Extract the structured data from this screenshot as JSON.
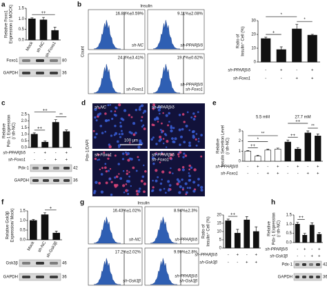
{
  "chart_data": [
    {
      "type": "bar",
      "panel": "a",
      "ylabel": [
        "Relative Foxo1",
        "Expression (/ MOCK)"
      ],
      "categories": [
        "Mock",
        "sh-NC",
        "sh-Foxo1"
      ],
      "values": [
        1.0,
        0.95,
        0.45
      ],
      "errors": [
        0.05,
        0.12,
        0.15
      ],
      "colors": [
        "#111111",
        "#111111",
        "#111111"
      ],
      "ylim": [
        0,
        1.5
      ],
      "yticks": [
        {
          "value": 0,
          "label": "0.0"
        },
        0.5,
        {
          "value": 1,
          "label": "1.0"
        },
        1.5
      ],
      "annotations": [
        "++"
      ]
    },
    {
      "type": "bar",
      "ylabel": [
        "Ratio of",
        "Insulin⁺ Cell (%)"
      ],
      "values": [
        17,
        9,
        24,
        19.5
      ],
      "errors": [
        1,
        2,
        3.4,
        0.6
      ],
      "colors": [
        "#111111",
        "#111111",
        "#111111",
        "#111111"
      ],
      "ylim": [
        0,
        30
      ],
      "yticks": [
        0,
        10,
        20,
        30
      ],
      "conditions": [
        {
          "name": "sh-PPARβ/δ",
          "signs": [
            "-",
            "+",
            "-",
            "+"
          ]
        },
        {
          "name": "sh-Foxo1",
          "signs": [
            "-",
            "-",
            "+",
            "+"
          ]
        }
      ],
      "annotations": [
        "+",
        "*",
        "*"
      ]
    },
    {
      "type": "bar",
      "panel": "c",
      "ylabel": [
        "Relative",
        "Pdx-1 Expression",
        "(/ sh-NC)"
      ],
      "values": [
        1.0,
        0.4,
        1.9,
        1.2
      ],
      "errors": [
        0.1,
        0.08,
        0.2,
        0.12
      ],
      "colors": [
        "#111111",
        "#111111",
        "#111111",
        "#111111"
      ],
      "ylim": [
        0,
        2.5
      ],
      "yticks": [
        {
          "value": 0,
          "label": "0.0"
        },
        0.5,
        {
          "value": 1,
          "label": "1.0"
        },
        1.5,
        {
          "value": 2,
          "label": "2.0"
        },
        2.5
      ],
      "conditions": [
        {
          "name": "sh-PPARβ/δ",
          "signs": [
            "-",
            "+",
            "-",
            "+"
          ]
        },
        {
          "name": "sh-Foxo1",
          "signs": [
            "-",
            "-",
            "+",
            "+"
          ]
        }
      ],
      "annotations": [
        "++",
        "++",
        "**"
      ]
    },
    {
      "type": "bar",
      "panel": "e",
      "ylabel": [
        "Relative",
        "Insulin Secretion Level",
        "(/ sh-NC)"
      ],
      "groups": [
        "5.5 mM",
        "27.7 mM"
      ],
      "values": [
        1.0,
        0.5,
        1.1,
        1.2,
        1.9,
        1.2,
        2.8,
        2.5
      ],
      "errors": [
        0.05,
        0.08,
        0.1,
        0.1,
        0.2,
        0.15,
        0.2,
        0.2
      ],
      "colors": [
        "#ffffff",
        "#ffffff",
        "#ffffff",
        "#ffffff",
        "#111111",
        "#111111",
        "#111111",
        "#111111"
      ],
      "ylim": [
        0,
        3
      ],
      "yticks": [
        0,
        1,
        2,
        3
      ],
      "conditions": [
        {
          "name": "sh-PPARβ/δ",
          "signs": [
            "-",
            "+",
            "-",
            "+",
            "-",
            "+",
            "-",
            "+"
          ]
        },
        {
          "name": "sh-Foxo1",
          "signs": [
            "-",
            "-",
            "+",
            "+",
            "-",
            "-",
            "+",
            "+"
          ]
        }
      ],
      "annotations": [
        "++",
        "*",
        "**",
        "++",
        "++",
        "**"
      ]
    },
    {
      "type": "bar",
      "panel": "f",
      "ylabel": [
        "Relative Gsk3β",
        "Expression/ Mock)"
      ],
      "categories": [
        "Mock",
        "sh-NC",
        "sh-Gsk3β"
      ],
      "values": [
        1.0,
        1.3,
        0.35
      ],
      "errors": [
        0.05,
        0.1,
        0.1
      ],
      "colors": [
        "#111111",
        "#111111",
        "#111111"
      ],
      "ylim": [
        0,
        1.5
      ],
      "yticks": [
        {
          "value": 0,
          "label": "0.0"
        },
        0.5,
        {
          "value": 1,
          "label": "1.0"
        },
        1.5
      ],
      "annotations": [
        "+"
      ]
    },
    {
      "type": "bar",
      "ylabel": [
        "Ratio of",
        "Insulin⁺ Cell (%)"
      ],
      "values": [
        16.5,
        9,
        17,
        10
      ],
      "errors": [
        1,
        2.3,
        2,
        2.8
      ],
      "colors": [
        "#111111",
        "#111111",
        "#111111",
        "#111111"
      ],
      "ylim": [
        0,
        20
      ],
      "yticks": [
        0,
        5,
        10,
        15,
        20
      ],
      "conditions": [
        {
          "name": "sh-PPARβ/δ",
          "signs": [
            "-",
            "+",
            "-",
            "+"
          ]
        },
        {
          "name": "sh-Gsk3β",
          "signs": [
            "-",
            "-",
            "+",
            "+"
          ]
        }
      ],
      "annotations": [
        "++"
      ]
    },
    {
      "type": "bar",
      "panel": "h",
      "ylabel": [
        "Relative",
        "Pdx-1 Expression",
        "(/ sh-NC)"
      ],
      "values": [
        1.0,
        0.4,
        0.95,
        0.45
      ],
      "errors": [
        0.1,
        0.1,
        0.12,
        0.1
      ],
      "colors": [
        "#111111",
        "#111111",
        "#111111",
        "#111111"
      ],
      "ylim": [
        0,
        1.5
      ],
      "yticks": [
        {
          "value": 0,
          "label": "0.0"
        },
        0.5,
        {
          "value": 1,
          "label": "1.0"
        },
        1.5
      ],
      "conditions": [
        {
          "name": "sh-PPARβ/δ",
          "signs": [
            "-",
            "+",
            "-",
            "+"
          ]
        },
        {
          "name": "sh-Gsk3β",
          "signs": [
            "-",
            "-",
            "+",
            "+"
          ]
        }
      ],
      "annotations": [
        "++"
      ]
    }
  ],
  "histograms": [
    {
      "panel": "b",
      "title": "Insulin",
      "ylabel": "Count",
      "plots": [
        {
          "stat": "16.83%±0.59%",
          "label": [
            "sh-NC"
          ]
        },
        {
          "stat": "9.11%±2.08%",
          "label": [
            "sh-PPARβ/δ"
          ]
        },
        {
          "stat": "24.3%±3.41%",
          "label": [
            "sh-Foxo1"
          ]
        },
        {
          "stat": "19.7%±0.62%",
          "label": [
            "sh-PPARβ/δ",
            "sh-Foxo1"
          ]
        }
      ]
    },
    {
      "panel": "g",
      "title": "Insulin",
      "plots": [
        {
          "stat": "16.43%±1.02%",
          "label": [
            "sh-NC"
          ]
        },
        {
          "stat": "8.94%±2.3%",
          "label": [
            "sh-PPARβ/δ"
          ]
        },
        {
          "stat": "17.2%±2.02%",
          "label": [
            "sh-Gsk3β"
          ]
        },
        {
          "stat": "9.99%±2.8%",
          "label": [
            "sh-PPARβ/δ",
            "sh-Gsk3β"
          ]
        }
      ]
    }
  ],
  "micrographs": {
    "panel": "d",
    "ylabel": "Pdx-1/DAPI",
    "scale": "100 μm",
    "labels": [
      [
        "sh-NC"
      ],
      [
        "sh-PPARβ/δ"
      ],
      [
        "sh-Foxo1"
      ],
      [
        "sh-PPARβ/δ",
        "sh-Foxo1"
      ]
    ]
  },
  "blots": [
    {
      "rows": [
        {
          "name": "Foxo1",
          "kda": "80"
        },
        {
          "name": "GAPDH",
          "kda": "36"
        }
      ]
    },
    {
      "rows": [
        {
          "name": "Pdx-1",
          "kda": "42"
        },
        {
          "name": "GAPDH",
          "kda": "36"
        }
      ]
    },
    {
      "rows": [
        {
          "name": "Gsk3β",
          "kda": "46"
        },
        {
          "name": "GAPDH",
          "kda": "36"
        }
      ]
    },
    {
      "rows": [
        {
          "name": "Pdx-1",
          "kda": "42"
        },
        {
          "name": "GAPDH",
          "kda": "36"
        }
      ]
    }
  ]
}
